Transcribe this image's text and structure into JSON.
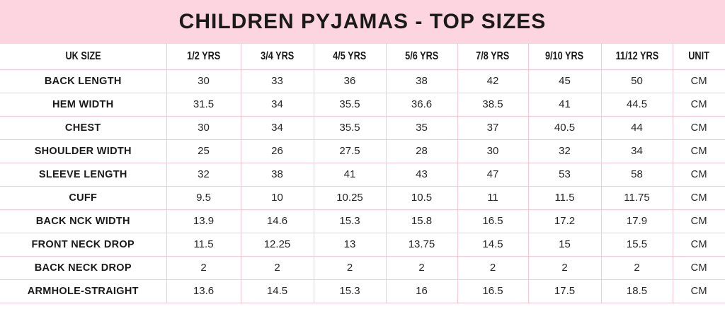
{
  "chart_data": {
    "type": "table",
    "title": "CHILDREN PYJAMAS - TOP SIZES",
    "columns": [
      "UK SIZE",
      "1/2 YRS",
      "3/4 YRS",
      "4/5 YRS",
      "5/6 YRS",
      "7/8 YRS",
      "9/10 YRS",
      "11/12 YRS",
      "UNIT"
    ],
    "rows": [
      {
        "label": "BACK LENGTH",
        "values": [
          "30",
          "33",
          "36",
          "38",
          "42",
          "45",
          "50"
        ],
        "unit": "CM"
      },
      {
        "label": "HEM WIDTH",
        "values": [
          "31.5",
          "34",
          "35.5",
          "36.6",
          "38.5",
          "41",
          "44.5"
        ],
        "unit": "CM"
      },
      {
        "label": "CHEST",
        "values": [
          "30",
          "34",
          "35.5",
          "35",
          "37",
          "40.5",
          "44"
        ],
        "unit": "CM"
      },
      {
        "label": "SHOULDER WIDTH",
        "values": [
          "25",
          "26",
          "27.5",
          "28",
          "30",
          "32",
          "34"
        ],
        "unit": "CM"
      },
      {
        "label": "SLEEVE LENGTH",
        "values": [
          "32",
          "38",
          "41",
          "43",
          "47",
          "53",
          "58"
        ],
        "unit": "CM"
      },
      {
        "label": "CUFF",
        "values": [
          "9.5",
          "10",
          "10.25",
          "10.5",
          "11",
          "11.5",
          "11.75"
        ],
        "unit": "CM"
      },
      {
        "label": "BACK NCK WIDTH",
        "values": [
          "13.9",
          "14.6",
          "15.3",
          "15.8",
          "16.5",
          "17.2",
          "17.9"
        ],
        "unit": "CM"
      },
      {
        "label": "FRONT NECK DROP",
        "values": [
          "11.5",
          "12.25",
          "13",
          "13.75",
          "14.5",
          "15",
          "15.5"
        ],
        "unit": "CM"
      },
      {
        "label": "BACK NECK DROP",
        "values": [
          "2",
          "2",
          "2",
          "2",
          "2",
          "2",
          "2"
        ],
        "unit": "CM"
      },
      {
        "label": "ARMHOLE-STRAIGHT",
        "values": [
          "13.6",
          "14.5",
          "15.3",
          "16",
          "16.5",
          "17.5",
          "18.5"
        ],
        "unit": "CM"
      }
    ],
    "layout": {
      "legend": "none",
      "grid": "on"
    }
  },
  "colors": {
    "banner_bg": "#FCD5E0",
    "grid_border": "#F8C9D4",
    "text": "#1A1A1A"
  }
}
